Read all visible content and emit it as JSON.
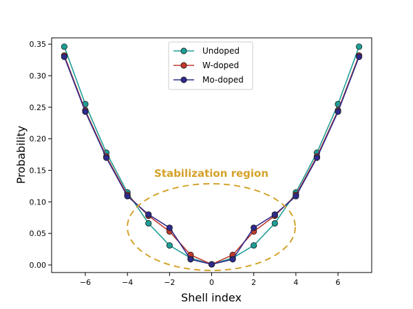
{
  "chart_data": {
    "type": "line",
    "title": "",
    "xlabel": "Shell index",
    "ylabel": "Probability",
    "xlim": [
      -7.6,
      7.6
    ],
    "ylim": [
      -0.012,
      0.36
    ],
    "xticks": [
      -6,
      -4,
      -2,
      0,
      2,
      4,
      6
    ],
    "xtick_labels": [
      "−6",
      "−4",
      "−2",
      "0",
      "2",
      "4",
      "6"
    ],
    "yticks": [
      0.0,
      0.05,
      0.1,
      0.15,
      0.2,
      0.25,
      0.3,
      0.35
    ],
    "ytick_labels": [
      "0.00",
      "0.05",
      "0.10",
      "0.15",
      "0.20",
      "0.25",
      "0.30",
      "0.35"
    ],
    "grid": false,
    "legend": "top-center",
    "x": [
      -7,
      -6,
      -5,
      -4,
      -3,
      -2,
      -1,
      0,
      1,
      2,
      3,
      4,
      5,
      6,
      7
    ],
    "series": [
      {
        "name": "Undoped",
        "color": "#1e9e96",
        "values": [
          0.346,
          0.255,
          0.178,
          0.115,
          0.066,
          0.031,
          0.011,
          0.001,
          0.011,
          0.031,
          0.066,
          0.115,
          0.178,
          0.255,
          0.346
        ]
      },
      {
        "name": "W-doped",
        "color": "#c0392b",
        "values": [
          0.332,
          0.245,
          0.172,
          0.111,
          0.078,
          0.053,
          0.016,
          0.001,
          0.016,
          0.053,
          0.078,
          0.111,
          0.172,
          0.245,
          0.332
        ]
      },
      {
        "name": "Mo-doped",
        "color": "#2e2a8c",
        "values": [
          0.33,
          0.243,
          0.17,
          0.109,
          0.08,
          0.059,
          0.009,
          0.001,
          0.009,
          0.059,
          0.08,
          0.109,
          0.17,
          0.243,
          0.33
        ]
      }
    ],
    "annotation": {
      "text": "Stabilization region",
      "color": "#d4a22a"
    }
  }
}
